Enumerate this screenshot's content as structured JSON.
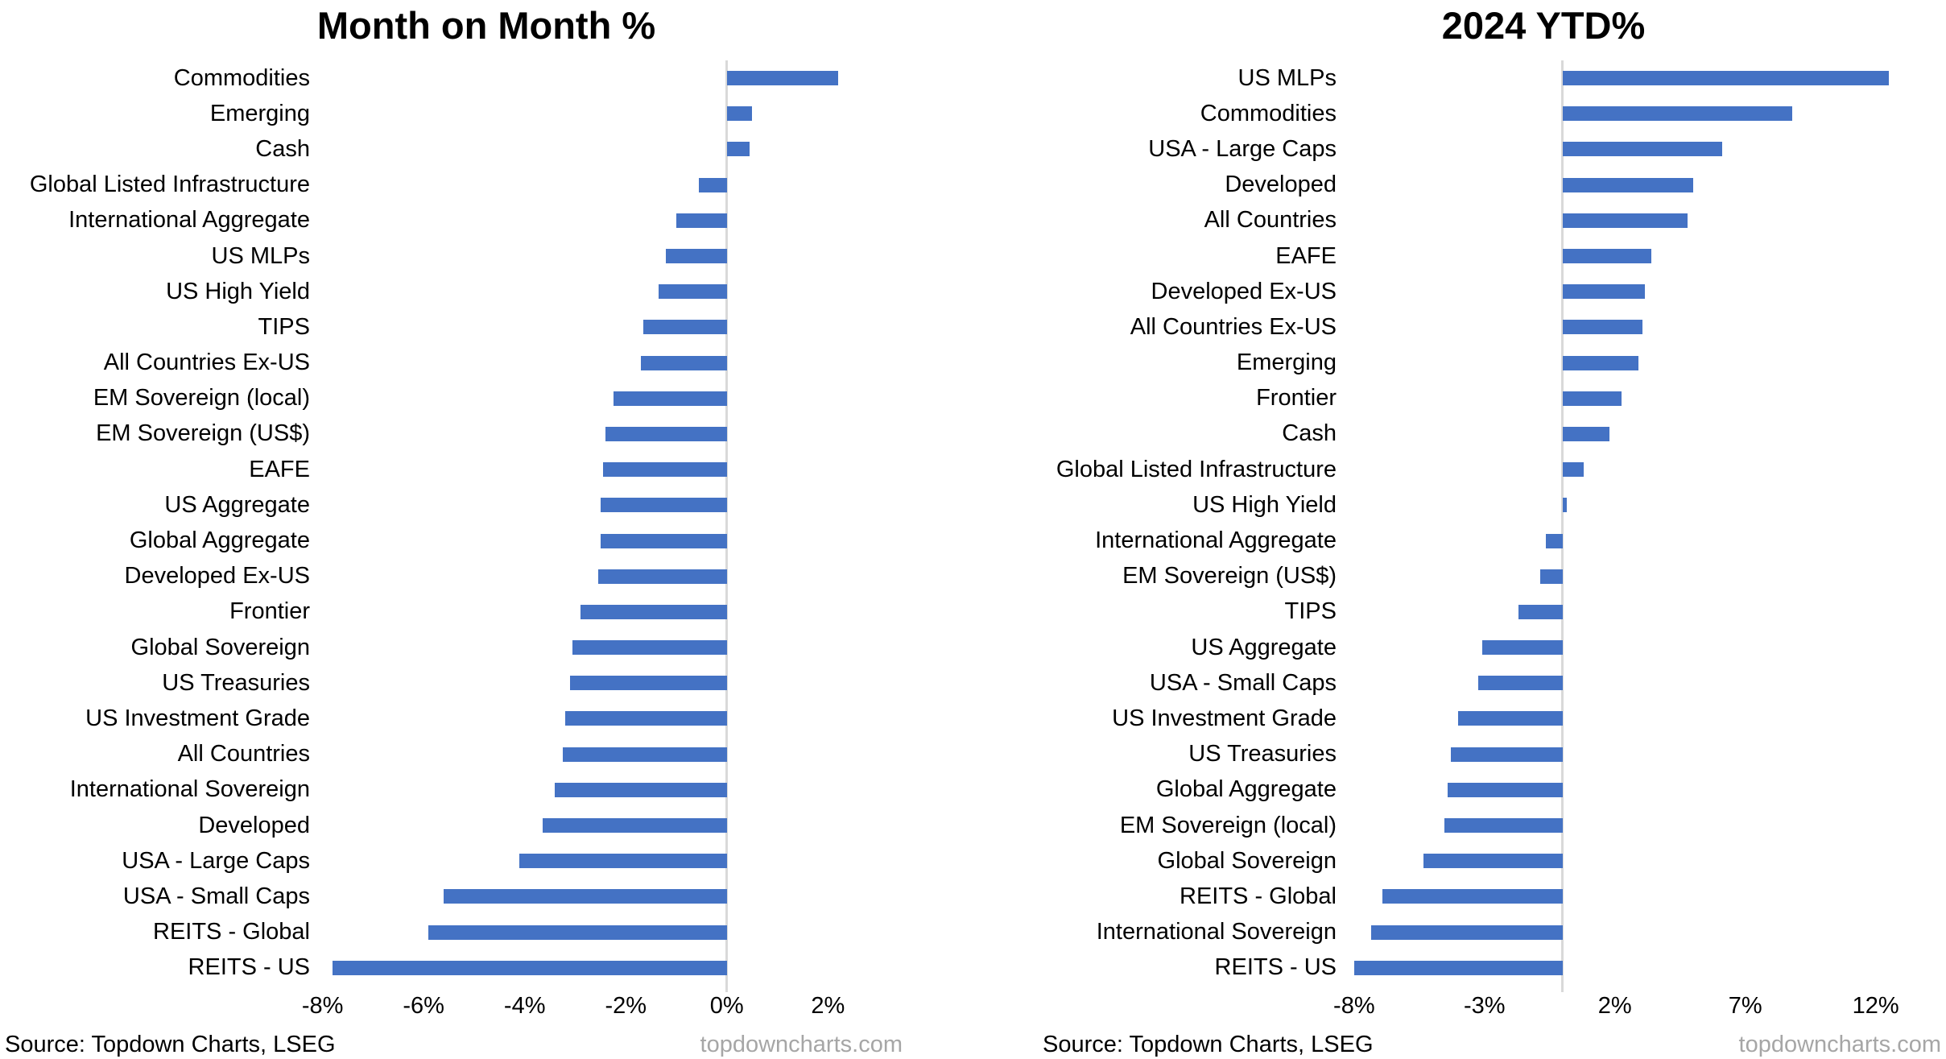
{
  "colors": {
    "bar": "#4472C4",
    "zero_axis_line": "#D9D9D9",
    "watermark_text": "#A6A6A6",
    "text": "#000000",
    "background": "#FFFFFF"
  },
  "chart_data": [
    {
      "type": "bar",
      "orientation": "horizontal",
      "title": "Month on Month %",
      "source": "Source: Topdown Charts, LSEG",
      "watermark": "topdowncharts.com",
      "bar_color": "#4472C4",
      "grid": false,
      "legend": false,
      "axis": {
        "min": -8.17,
        "max": 3.78,
        "ticks": [
          {
            "value": -8,
            "label": "-8%"
          },
          {
            "value": -6,
            "label": "-6%"
          },
          {
            "value": -4,
            "label": "-4%"
          },
          {
            "value": -2,
            "label": "-2%"
          },
          {
            "value": 0,
            "label": "0%"
          },
          {
            "value": 2,
            "label": "2%"
          }
        ]
      },
      "categories": [
        "Commodities",
        "Emerging",
        "Cash",
        "Global Listed Infrastructure",
        "International Aggregate",
        "US MLPs",
        "US High Yield",
        "TIPS",
        "All Countries Ex-US",
        "EM Sovereign (local)",
        "EM Sovereign (US$)",
        "EAFE",
        "US Aggregate",
        "Global Aggregate",
        "Developed Ex-US",
        "Frontier",
        "Global Sovereign",
        "US Treasuries",
        "US Investment Grade",
        "All Countries",
        "International Sovereign",
        "Developed",
        "USA - Large Caps",
        "USA - Small Caps",
        "REITS - Global",
        "REITS - US"
      ],
      "values": [
        2.2,
        0.5,
        0.45,
        -0.55,
        -1.0,
        -1.2,
        -1.35,
        -1.65,
        -1.7,
        -2.25,
        -2.4,
        -2.45,
        -2.5,
        -2.5,
        -2.55,
        -2.9,
        -3.05,
        -3.1,
        -3.2,
        -3.25,
        -3.4,
        -3.65,
        -4.1,
        -5.6,
        -5.9,
        -7.8
      ]
    },
    {
      "type": "bar",
      "orientation": "horizontal",
      "title": "2024 YTD%",
      "source": "Source: Topdown Charts, LSEG",
      "watermark": "topdowncharts.com",
      "bar_color": "#4472C4",
      "grid": false,
      "legend": false,
      "axis": {
        "min": -8.52,
        "max": 14.17,
        "ticks": [
          {
            "value": -8,
            "label": "-8%"
          },
          {
            "value": -3,
            "label": "-3%"
          },
          {
            "value": 2,
            "label": "2%"
          },
          {
            "value": 7,
            "label": "7%"
          },
          {
            "value": 12,
            "label": "12%"
          }
        ]
      },
      "categories": [
        "US MLPs",
        "Commodities",
        "USA - Large Caps",
        "Developed",
        "All Countries",
        "EAFE",
        "Developed Ex-US",
        "All Countries Ex-US",
        "Emerging",
        "Frontier",
        "Cash",
        "Global Listed Infrastructure",
        "US High Yield",
        "International Aggregate",
        "EM Sovereign (US$)",
        "TIPS",
        "US Aggregate",
        "USA - Small Caps",
        "US Investment Grade",
        "US Treasuries",
        "Global Aggregate",
        "EM Sovereign (local)",
        "Global Sovereign",
        "REITS - Global",
        "International Sovereign",
        "REITS - US"
      ],
      "values": [
        12.5,
        8.8,
        6.1,
        5.0,
        4.8,
        3.4,
        3.15,
        3.05,
        2.9,
        2.25,
        1.8,
        0.8,
        0.15,
        -0.65,
        -0.85,
        -1.7,
        -3.1,
        -3.25,
        -4.0,
        -4.3,
        -4.4,
        -4.55,
        -5.35,
        -6.9,
        -7.35,
        -8.0
      ]
    }
  ]
}
